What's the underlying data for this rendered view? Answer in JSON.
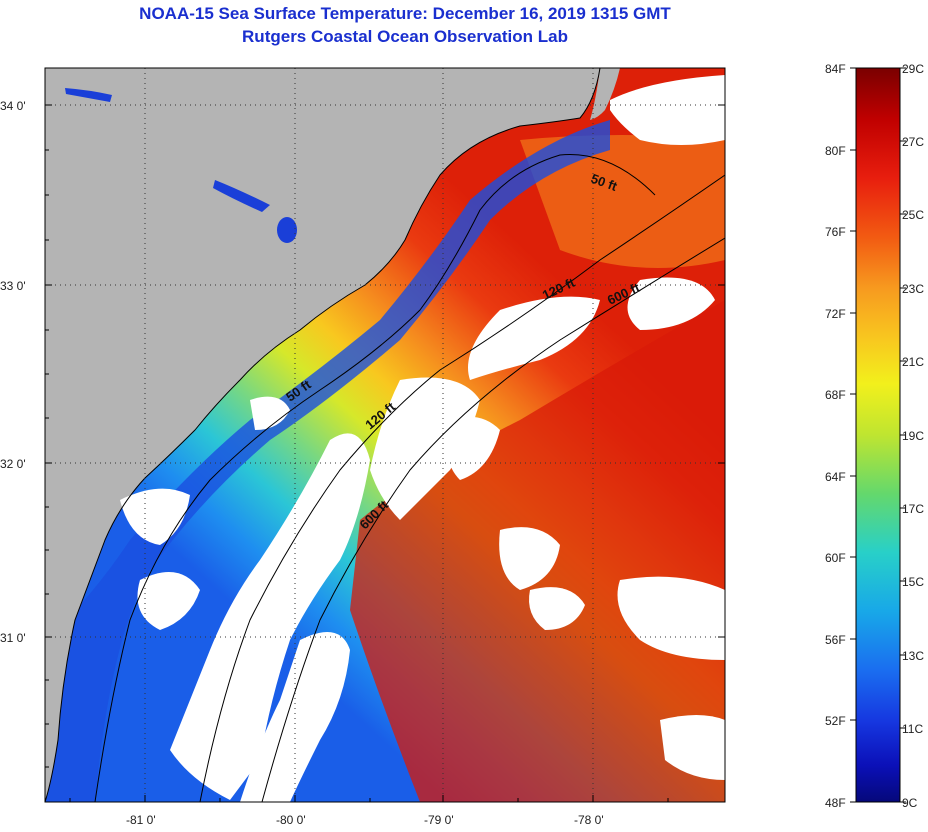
{
  "title": "NOAA-15 Sea Surface Temperature:  December 16, 2019 1315 GMT",
  "subtitle": "Rutgers Coastal Ocean Observation Lab",
  "map": {
    "lat_labels": [
      "34 0'",
      "33 0'",
      "32 0'",
      "31 0'"
    ],
    "lon_labels": [
      "-81 0'",
      "-80 0'",
      "-79 0'",
      "-78 0'"
    ],
    "contour_labels": [
      "50 ft",
      "50 ft",
      "120 ft",
      "120 ft",
      "600 ft",
      "600 ft"
    ]
  },
  "colorbar": {
    "f_labels": [
      "84F",
      "80F",
      "76F",
      "72F",
      "68F",
      "64F",
      "60F",
      "56F",
      "52F",
      "48F"
    ],
    "c_labels": [
      "29C",
      "27C",
      "25C",
      "23C",
      "21C",
      "19C",
      "17C",
      "15C",
      "13C",
      "11C",
      "9C"
    ],
    "stops": [
      "#7a0000",
      "#c00000",
      "#e81e0e",
      "#f25a12",
      "#f79a1f",
      "#f8c81f",
      "#f2f01c",
      "#bfe530",
      "#64d86c",
      "#28d0c8",
      "#18a8e8",
      "#1a6ef0",
      "#1637e0",
      "#0b10b8",
      "#05087a"
    ]
  },
  "colors": {
    "land": "#b4b4b4",
    "cloud": "#ffffff",
    "title": "#1a2fcf"
  }
}
